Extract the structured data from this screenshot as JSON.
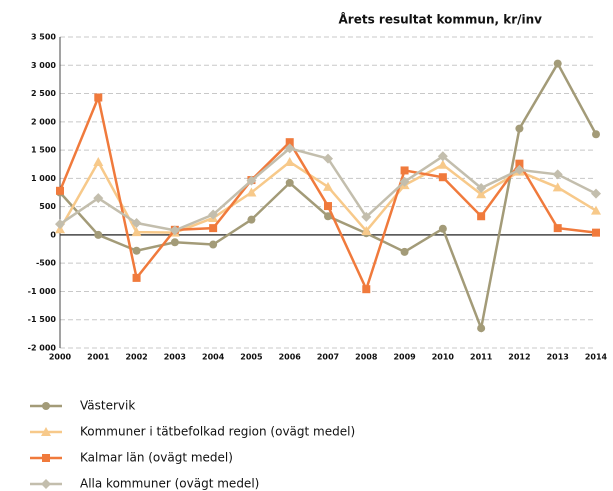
{
  "chart_data": {
    "type": "line",
    "title": "Årets resultat kommun, kr/inv",
    "categories": [
      "2000",
      "2001",
      "2002",
      "2003",
      "2004",
      "2005",
      "2006",
      "2007",
      "2008",
      "2009",
      "2010",
      "2011",
      "2012",
      "2013",
      "2014"
    ],
    "ylim": [
      -2000,
      3500
    ],
    "yticks": [
      {
        "value": -2000,
        "label": "-2 000"
      },
      {
        "value": -1500,
        "label": "-1 500"
      },
      {
        "value": -1000,
        "label": "-1 000"
      },
      -500,
      0,
      500,
      {
        "value": 1000,
        "label": "1 000"
      },
      {
        "value": 1500,
        "label": "1 500"
      },
      {
        "value": 2000,
        "label": "2 000"
      },
      {
        "value": 2500,
        "label": "2 500"
      },
      {
        "value": 3000,
        "label": "3 000"
      },
      {
        "value": 3500,
        "label": "3 500"
      }
    ],
    "grid": true,
    "series": [
      {
        "name": "Västervik",
        "color": "#a39b78",
        "marker": "circle",
        "values": [
          750,
          0,
          -280,
          -130,
          -170,
          270,
          920,
          330,
          30,
          -300,
          110,
          -1650,
          1880,
          3030,
          1780
        ]
      },
      {
        "name": "Kommuner i tätbefolkad region (ovägt medel)",
        "color": "#f7c98a",
        "marker": "triangle",
        "values": [
          100,
          1290,
          50,
          40,
          300,
          750,
          1290,
          850,
          70,
          880,
          1240,
          720,
          1120,
          840,
          430
        ]
      },
      {
        "name": "Kalmar län (ovägt medel)",
        "color": "#f07a3c",
        "marker": "square",
        "values": [
          780,
          2430,
          -760,
          90,
          120,
          970,
          1640,
          510,
          -960,
          1140,
          1020,
          330,
          1260,
          120,
          40
        ]
      },
      {
        "name": "Alla kommuner (ovägt medel)",
        "color": "#c3bead",
        "marker": "diamond",
        "values": [
          190,
          650,
          210,
          80,
          360,
          960,
          1530,
          1350,
          320,
          940,
          1390,
          830,
          1150,
          1070,
          730
        ]
      }
    ]
  }
}
